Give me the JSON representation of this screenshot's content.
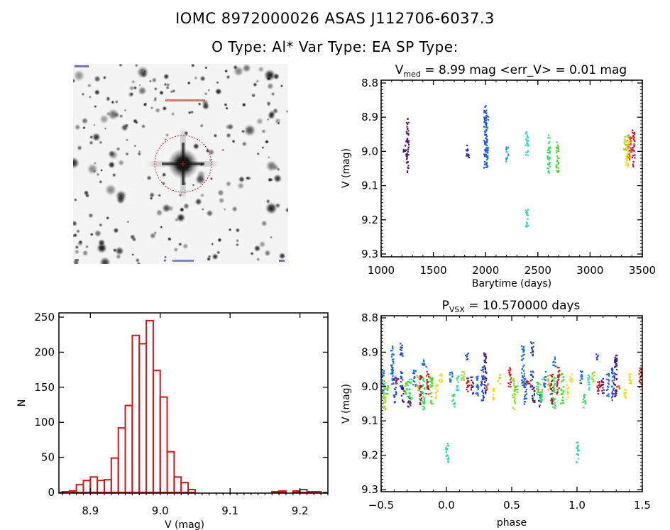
{
  "header": {
    "title_line1": "IOMC 8972000026    ASAS J112706-6037.3",
    "title_line2": "O Type: Al*  Var Type: EA  SP Type:"
  },
  "finder_chart": {
    "description": "Greyscale sky image with target star marked by red circle and cross",
    "marker_color": "#d01818"
  },
  "chart_data": [
    {
      "id": "lightcurve",
      "type": "scatter",
      "title_prefix": "V",
      "title_subscript": "med",
      "title_rest": " = 8.99 mag <err_V> = 0.01 mag",
      "xlabel": "Barytime (days)",
      "ylabel": "V (mag)",
      "xlim": [
        1000,
        3500
      ],
      "ylim": [
        9.3,
        8.8
      ],
      "y_inverted": true,
      "xticks": [
        1000,
        1500,
        2000,
        2500,
        3000,
        3500
      ],
      "xtick_labels": [
        "1000",
        "1500",
        "2000",
        "2500",
        "3000",
        "3500"
      ],
      "yticks": [
        8.8,
        8.9,
        9.0,
        9.1,
        9.2,
        9.3
      ],
      "ytick_labels": [
        "8.8",
        "8.9",
        "9.0",
        "9.1",
        "9.2",
        "9.3"
      ],
      "color_scale": "time (rainbow, purple=early to red=late)",
      "clusters": [
        {
          "x": 1215,
          "ymin": 8.975,
          "ymax": 9.005,
          "color": "#4a1a7a"
        },
        {
          "x": 1245,
          "ymin": 8.9,
          "ymax": 9.06,
          "color": "#4a1a7a"
        },
        {
          "x": 1820,
          "ymin": 8.98,
          "ymax": 9.025,
          "color": "#3a2a9a"
        },
        {
          "x": 1990,
          "ymin": 8.86,
          "ymax": 9.05,
          "color": "#1a50d8"
        },
        {
          "x": 2005,
          "ymin": 8.89,
          "ymax": 9.045,
          "color": "#1a6ae0"
        },
        {
          "x": 2200,
          "ymin": 8.985,
          "ymax": 9.035,
          "color": "#2aa8d8"
        },
        {
          "x": 2390,
          "ymin": 8.94,
          "ymax": 9.015,
          "color": "#30d8c8"
        },
        {
          "x": 2390,
          "ymin": 9.16,
          "ymax": 9.22,
          "color": "#30d8b0"
        },
        {
          "x": 2600,
          "ymin": 8.95,
          "ymax": 9.065,
          "color": "#30e060"
        },
        {
          "x": 2680,
          "ymin": 8.97,
          "ymax": 9.065,
          "color": "#40e020"
        },
        {
          "x": 3330,
          "ymin": 8.945,
          "ymax": 8.995,
          "color": "#90e020"
        },
        {
          "x": 3350,
          "ymin": 8.945,
          "ymax": 9.045,
          "color": "#e8e020"
        },
        {
          "x": 3365,
          "ymin": 8.95,
          "ymax": 9.02,
          "color": "#f09020"
        },
        {
          "x": 3380,
          "ymin": 8.955,
          "ymax": 9.03,
          "color": "#e05020"
        },
        {
          "x": 3410,
          "ymin": 8.935,
          "ymax": 9.045,
          "color": "#d01818"
        }
      ]
    },
    {
      "id": "histogram",
      "type": "bar",
      "xlabel": "V (mag)",
      "ylabel": "N",
      "xlim": [
        8.855,
        9.24
      ],
      "ylim": [
        0,
        255
      ],
      "xticks": [
        8.9,
        9.0,
        9.1,
        9.2
      ],
      "xtick_labels": [
        "8.9",
        "9.0",
        "9.1",
        "9.2"
      ],
      "yticks": [
        0,
        50,
        100,
        150,
        200,
        250
      ],
      "ytick_labels": [
        "0",
        "50",
        "100",
        "150",
        "200",
        "250"
      ],
      "bar_color": "#d01818",
      "bin_width": 0.01,
      "bin_starts": [
        8.86,
        8.87,
        8.88,
        8.89,
        8.9,
        8.91,
        8.92,
        8.93,
        8.94,
        8.95,
        8.96,
        8.97,
        8.98,
        8.99,
        9.0,
        9.01,
        9.02,
        9.03,
        9.04,
        9.05,
        9.06,
        9.07,
        9.08,
        9.09,
        9.1,
        9.11,
        9.12,
        9.13,
        9.14,
        9.15,
        9.16,
        9.17,
        9.18,
        9.19,
        9.2,
        9.21,
        9.22
      ],
      "values": [
        1,
        2,
        11,
        17,
        22,
        17,
        18,
        49,
        92,
        124,
        224,
        212,
        245,
        174,
        136,
        58,
        22,
        14,
        4,
        0,
        0,
        0,
        0,
        0,
        0,
        0,
        0,
        0,
        0,
        0,
        1,
        2,
        0,
        2,
        4,
        1,
        1
      ]
    },
    {
      "id": "phased",
      "type": "scatter",
      "title_prefix": "P",
      "title_subscript": "VSX",
      "title_rest": " = 10.570000 days",
      "xlabel": "phase",
      "ylabel": "V (mag)",
      "xlim": [
        -0.5,
        1.5
      ],
      "ylim": [
        9.3,
        8.8
      ],
      "y_inverted": true,
      "xticks": [
        -0.5,
        0.0,
        0.5,
        1.0,
        1.5
      ],
      "xtick_labels": [
        "−0.5",
        "0.0",
        "0.5",
        "1.0",
        "1.5"
      ],
      "yticks": [
        8.8,
        8.9,
        9.0,
        9.1,
        9.2,
        9.3
      ],
      "ytick_labels": [
        "8.8",
        "8.9",
        "9.0",
        "9.1",
        "9.2",
        "9.3"
      ],
      "period_days": 10.57,
      "clusters": [
        {
          "x": -0.49,
          "ymin": 8.95,
          "ymax": 9.02,
          "color": "#1a6ae0"
        },
        {
          "x": -0.48,
          "ymin": 8.98,
          "ymax": 9.065,
          "color": "#90e020"
        },
        {
          "x": -0.46,
          "ymin": 8.995,
          "ymax": 9.02,
          "color": "#40e020"
        },
        {
          "x": -0.42,
          "ymin": 8.88,
          "ymax": 9.0,
          "color": "#1a6ae0"
        },
        {
          "x": -0.4,
          "ymin": 8.97,
          "ymax": 9.05,
          "color": "#1a50d8"
        },
        {
          "x": -0.38,
          "ymin": 8.97,
          "ymax": 8.99,
          "color": "#d01818"
        },
        {
          "x": -0.35,
          "ymin": 8.865,
          "ymax": 8.91,
          "color": "#1a40c8"
        },
        {
          "x": -0.35,
          "ymin": 8.95,
          "ymax": 9.0,
          "color": "#1a50d8"
        },
        {
          "x": -0.34,
          "ymin": 9.0,
          "ymax": 9.045,
          "color": "#4a1a7a"
        },
        {
          "x": -0.31,
          "ymin": 8.98,
          "ymax": 9.03,
          "color": "#40e020"
        },
        {
          "x": -0.29,
          "ymin": 9.02,
          "ymax": 9.06,
          "color": "#4a1a7a"
        },
        {
          "x": -0.28,
          "ymin": 8.975,
          "ymax": 9.04,
          "color": "#30e060"
        },
        {
          "x": -0.25,
          "ymin": 8.95,
          "ymax": 9.0,
          "color": "#1a6ae0"
        },
        {
          "x": -0.22,
          "ymin": 8.96,
          "ymax": 9.01,
          "color": "#e8a020"
        },
        {
          "x": -0.2,
          "ymin": 8.96,
          "ymax": 9.05,
          "color": "#8a2a18"
        },
        {
          "x": -0.18,
          "ymin": 8.91,
          "ymax": 8.94,
          "color": "#1a6ae0"
        },
        {
          "x": -0.18,
          "ymin": 8.97,
          "ymax": 9.065,
          "color": "#30e060"
        },
        {
          "x": -0.15,
          "ymin": 8.94,
          "ymax": 9.02,
          "color": "#d01818"
        },
        {
          "x": -0.12,
          "ymin": 8.96,
          "ymax": 9.05,
          "color": "#40e020"
        },
        {
          "x": -0.08,
          "ymin": 8.99,
          "ymax": 9.035,
          "color": "#e8e020"
        },
        {
          "x": -0.05,
          "ymin": 8.955,
          "ymax": 8.99,
          "color": "#e8e020"
        },
        {
          "x": 0.0,
          "ymin": 9.16,
          "ymax": 9.22,
          "color": "#30d8b0"
        },
        {
          "x": 0.03,
          "ymin": 8.95,
          "ymax": 8.99,
          "color": "#1a6ae0"
        },
        {
          "x": 0.05,
          "ymin": 9.02,
          "ymax": 9.06,
          "color": "#30e060"
        },
        {
          "x": 0.08,
          "ymin": 8.96,
          "ymax": 9.01,
          "color": "#30d8c8"
        },
        {
          "x": 0.12,
          "ymin": 8.95,
          "ymax": 8.99,
          "color": "#90e020"
        },
        {
          "x": 0.15,
          "ymin": 8.9,
          "ymax": 8.92,
          "color": "#1a40c8"
        },
        {
          "x": 0.16,
          "ymin": 8.97,
          "ymax": 9.02,
          "color": "#d01818"
        },
        {
          "x": 0.19,
          "ymin": 8.97,
          "ymax": 9.02,
          "color": "#4a1a7a"
        },
        {
          "x": 0.23,
          "ymin": 8.96,
          "ymax": 9.03,
          "color": "#1a6ae0"
        },
        {
          "x": 0.27,
          "ymin": 8.94,
          "ymax": 9.04,
          "color": "#1a50d8"
        },
        {
          "x": 0.29,
          "ymin": 8.9,
          "ymax": 9.03,
          "color": "#4a1a7a"
        },
        {
          "x": 0.31,
          "ymin": 8.99,
          "ymax": 9.01,
          "color": "#e05020"
        },
        {
          "x": 0.36,
          "ymin": 9.0,
          "ymax": 9.04,
          "color": "#e8e020"
        },
        {
          "x": 0.4,
          "ymin": 8.96,
          "ymax": 8.99,
          "color": "#c8e020"
        },
        {
          "x": 0.48,
          "ymin": 8.94,
          "ymax": 9.0,
          "color": "#d01818"
        },
        {
          "x": 0.51,
          "ymin": 8.975,
          "ymax": 9.065,
          "color": "#90e020"
        },
        {
          "x": 0.53,
          "ymin": 8.995,
          "ymax": 9.02,
          "color": "#40e020"
        },
        {
          "x": 0.58,
          "ymin": 8.88,
          "ymax": 9.0,
          "color": "#1a6ae0"
        },
        {
          "x": 0.6,
          "ymin": 8.97,
          "ymax": 9.05,
          "color": "#1a50d8"
        },
        {
          "x": 0.62,
          "ymin": 8.97,
          "ymax": 8.99,
          "color": "#d01818"
        },
        {
          "x": 0.65,
          "ymin": 8.865,
          "ymax": 8.91,
          "color": "#1a40c8"
        },
        {
          "x": 0.65,
          "ymin": 8.95,
          "ymax": 9.0,
          "color": "#1a50d8"
        },
        {
          "x": 0.66,
          "ymin": 9.0,
          "ymax": 9.045,
          "color": "#4a1a7a"
        },
        {
          "x": 0.69,
          "ymin": 8.98,
          "ymax": 9.03,
          "color": "#40e020"
        },
        {
          "x": 0.71,
          "ymin": 9.02,
          "ymax": 9.06,
          "color": "#4a1a7a"
        },
        {
          "x": 0.72,
          "ymin": 8.975,
          "ymax": 9.04,
          "color": "#30e060"
        },
        {
          "x": 0.75,
          "ymin": 8.95,
          "ymax": 9.0,
          "color": "#1a6ae0"
        },
        {
          "x": 0.78,
          "ymin": 8.96,
          "ymax": 9.01,
          "color": "#e8a020"
        },
        {
          "x": 0.8,
          "ymin": 8.96,
          "ymax": 9.05,
          "color": "#8a2a18"
        },
        {
          "x": 0.82,
          "ymin": 8.91,
          "ymax": 8.94,
          "color": "#1a6ae0"
        },
        {
          "x": 0.82,
          "ymin": 8.97,
          "ymax": 9.065,
          "color": "#30e060"
        },
        {
          "x": 0.85,
          "ymin": 8.94,
          "ymax": 9.02,
          "color": "#d01818"
        },
        {
          "x": 0.88,
          "ymin": 8.96,
          "ymax": 9.05,
          "color": "#40e020"
        },
        {
          "x": 0.92,
          "ymin": 8.99,
          "ymax": 9.035,
          "color": "#e8e020"
        },
        {
          "x": 0.95,
          "ymin": 8.955,
          "ymax": 8.99,
          "color": "#e8e020"
        },
        {
          "x": 1.0,
          "ymin": 9.16,
          "ymax": 9.22,
          "color": "#30d8b0"
        },
        {
          "x": 1.03,
          "ymin": 8.95,
          "ymax": 8.99,
          "color": "#1a6ae0"
        },
        {
          "x": 1.05,
          "ymin": 9.02,
          "ymax": 9.06,
          "color": "#30e060"
        },
        {
          "x": 1.08,
          "ymin": 8.96,
          "ymax": 9.01,
          "color": "#30d8c8"
        },
        {
          "x": 1.12,
          "ymin": 8.95,
          "ymax": 8.99,
          "color": "#90e020"
        },
        {
          "x": 1.15,
          "ymin": 8.9,
          "ymax": 8.92,
          "color": "#1a40c8"
        },
        {
          "x": 1.16,
          "ymin": 8.97,
          "ymax": 9.02,
          "color": "#d01818"
        },
        {
          "x": 1.19,
          "ymin": 8.97,
          "ymax": 9.02,
          "color": "#4a1a7a"
        },
        {
          "x": 1.23,
          "ymin": 8.96,
          "ymax": 9.03,
          "color": "#1a6ae0"
        },
        {
          "x": 1.27,
          "ymin": 8.94,
          "ymax": 9.04,
          "color": "#1a50d8"
        },
        {
          "x": 1.29,
          "ymin": 8.9,
          "ymax": 9.03,
          "color": "#4a1a7a"
        },
        {
          "x": 1.31,
          "ymin": 8.99,
          "ymax": 9.01,
          "color": "#e05020"
        },
        {
          "x": 1.36,
          "ymin": 9.0,
          "ymax": 9.04,
          "color": "#e8e020"
        },
        {
          "x": 1.4,
          "ymin": 8.96,
          "ymax": 8.99,
          "color": "#c8e020"
        },
        {
          "x": 1.48,
          "ymin": 8.94,
          "ymax": 9.0,
          "color": "#d01818"
        }
      ]
    }
  ]
}
